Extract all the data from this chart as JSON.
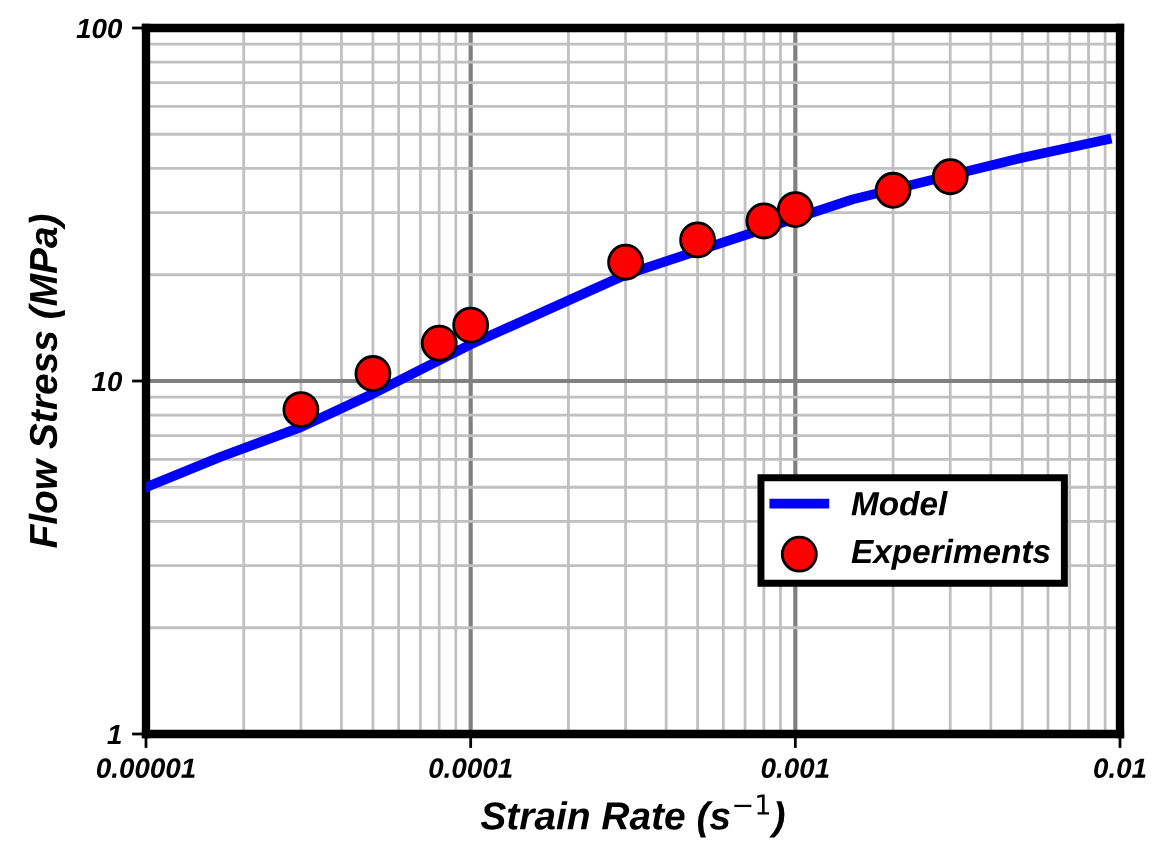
{
  "chart_data": {
    "type": "line",
    "xlabel": "Strain Rate (s$^{−1}$)",
    "ylabel": "Flow Stress (MPa)",
    "log": "xy",
    "xlim": [
      1e-05,
      0.01
    ],
    "xticks": [
      {
        "value": 1e-05,
        "label": "0.00001"
      },
      {
        "value": 0.0001,
        "label": "0.0001"
      },
      {
        "value": 0.001,
        "label": "0.001"
      },
      {
        "value": 0.01,
        "label": "0.01"
      }
    ],
    "ylim": [
      1,
      100
    ],
    "yticks": [
      1,
      10,
      100
    ],
    "grid": true,
    "legend": "bottom right",
    "series": [
      {
        "name": "Model",
        "color": "#0000ff",
        "marker": "none",
        "line_style": "solid",
        "x": [
          1e-05,
          1.7e-05,
          3e-05,
          5e-05,
          0.0001,
          0.0003,
          0.0015,
          0.005,
          0.0091
        ],
        "values": [
          5.0,
          6.1,
          7.4,
          9.2,
          12.7,
          20.0,
          32.7,
          42.9,
          48.3
        ]
      },
      {
        "name": "Experiments",
        "type": "scatter",
        "color": "#ff0000",
        "marker": "circle",
        "x": [
          3e-05,
          5e-05,
          8e-05,
          0.0001,
          0.0003,
          0.0005,
          0.0008,
          0.001,
          0.002,
          0.003
        ],
        "values": [
          8.3,
          10.5,
          12.8,
          14.4,
          21.7,
          25.1,
          28.4,
          30.6,
          34.7,
          37.9
        ]
      }
    ]
  }
}
